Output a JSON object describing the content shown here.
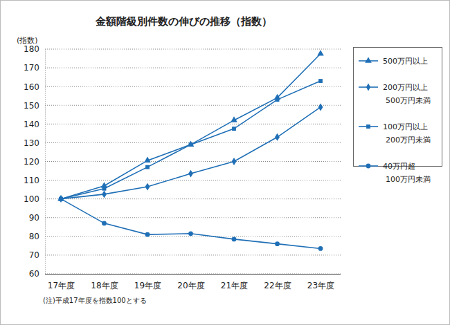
{
  "chart_data": {
    "type": "line",
    "title": "金額階級別件数の伸びの推移（指数）",
    "ylabel": "(指数)",
    "annotations": [
      "(注)平成17年度を指数100とする"
    ],
    "categories": [
      "17年度",
      "18年度",
      "19年度",
      "20年度",
      "21年度",
      "22年度",
      "23年度"
    ],
    "series": [
      {
        "name": "500万円以上",
        "color": "#1f6fb6",
        "marker": "triangle",
        "values": [
          100,
          107,
          120.5,
          129,
          142,
          154,
          177.5
        ]
      },
      {
        "name": "200万円以上\n500万円未満",
        "color": "#1f6fb6",
        "marker": "diamond",
        "values": [
          100,
          102.5,
          106.5,
          113.5,
          120,
          133,
          149
        ]
      },
      {
        "name": "100万円以上\n200万円未満",
        "color": "#1f6fb6",
        "marker": "square",
        "values": [
          100,
          105.5,
          117,
          129,
          137.5,
          153,
          163
        ]
      },
      {
        "name": "40万円超\n100万円未満",
        "color": "#1f6fb6",
        "marker": "circle",
        "values": [
          100,
          87,
          81,
          81.5,
          78.5,
          76,
          73.5
        ]
      }
    ],
    "ylim": [
      60,
      180
    ],
    "yticks": [
      60,
      70,
      80,
      90,
      100,
      110,
      120,
      130,
      140,
      150,
      160,
      170,
      180
    ],
    "grid": true,
    "legend": "right"
  }
}
